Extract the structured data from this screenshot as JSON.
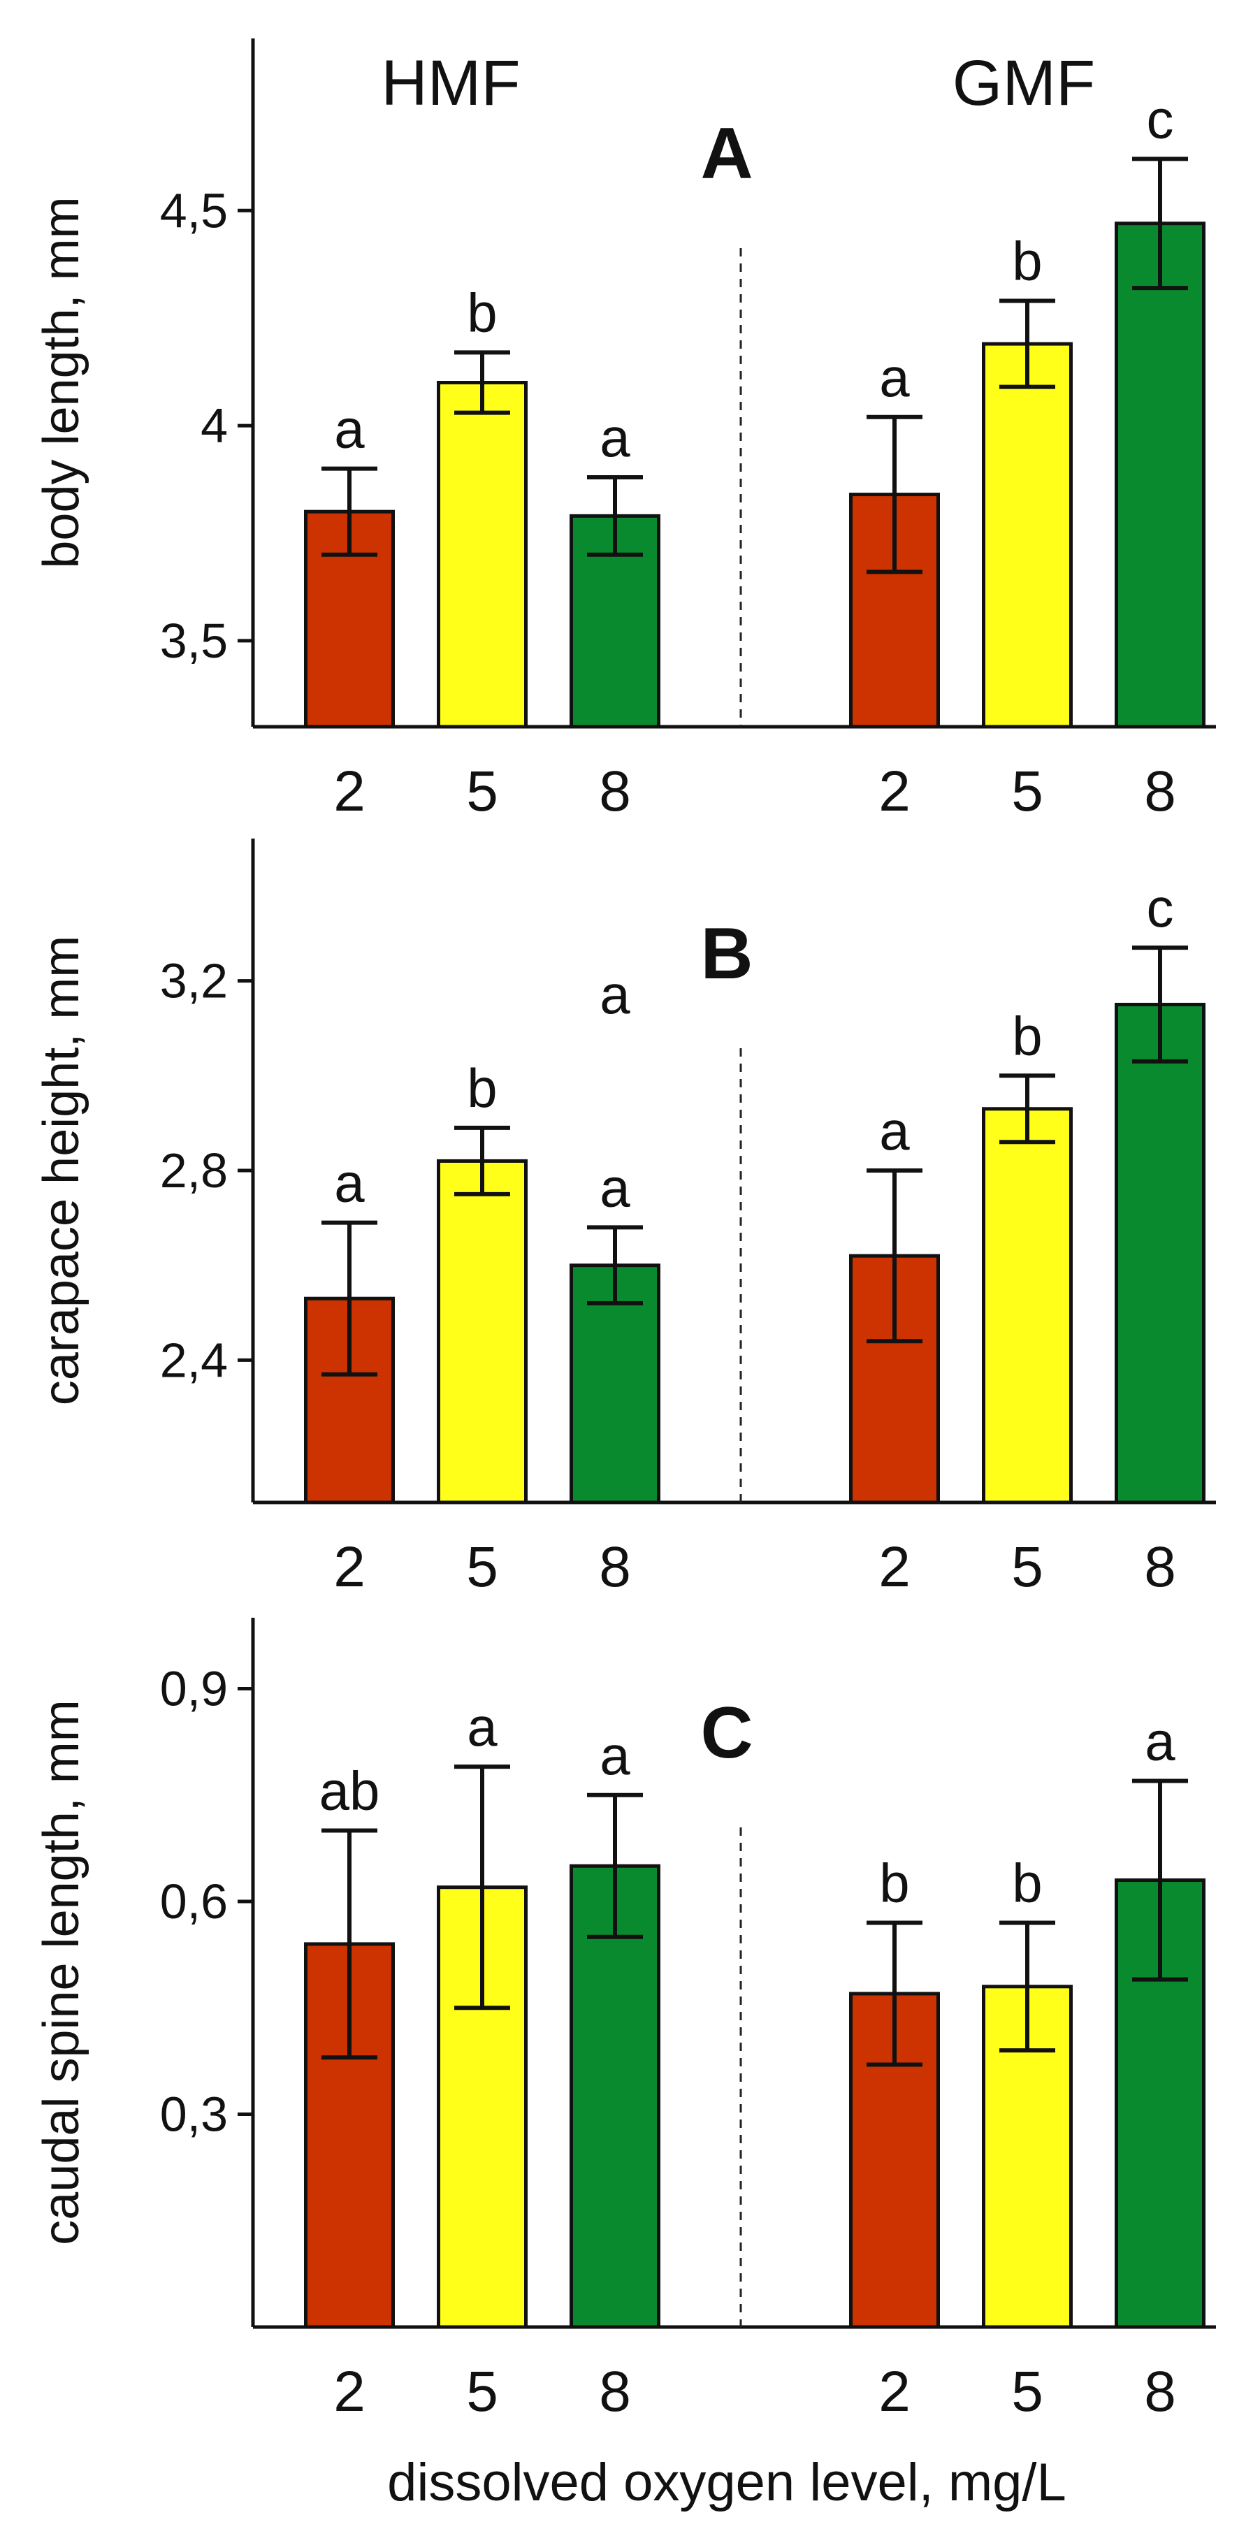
{
  "figure": {
    "group_labels": [
      "HMF",
      "GMF"
    ],
    "x_axis_title": "dissolved oxygen level, mg/L"
  },
  "colors": {
    "o2_2": "#cc3300",
    "o2_5": "#ffff1a",
    "o2_8": "#0a8a2e"
  },
  "chart_data": [
    {
      "type": "bar",
      "panel_label": "A",
      "ylabel": "body length, mm",
      "ylim": [
        3.3,
        4.9
      ],
      "yticks": [
        3.5,
        4,
        4.5
      ],
      "ytick_labels": [
        "3,5",
        "4",
        "4,5"
      ],
      "groups": [
        "HMF",
        "GMF"
      ],
      "categories": [
        "2",
        "5",
        "8"
      ],
      "series": [
        {
          "name": "HMF",
          "values": [
            3.8,
            4.1,
            3.79
          ],
          "errors": [
            0.1,
            0.07,
            0.09
          ],
          "letters": [
            "a",
            "b",
            "a"
          ]
        },
        {
          "name": "GMF",
          "values": [
            3.84,
            4.19,
            4.47
          ],
          "errors": [
            0.18,
            0.1,
            0.15
          ],
          "letters": [
            "a",
            "b",
            "c"
          ]
        }
      ]
    },
    {
      "type": "bar",
      "panel_label": "B",
      "ylabel": "carapace height, mm",
      "ylim": [
        2.1,
        3.5
      ],
      "yticks": [
        2.4,
        2.8,
        3.2
      ],
      "ytick_labels": [
        "2,4",
        "2,8",
        "3,2"
      ],
      "groups": [
        "HMF",
        "GMF"
      ],
      "categories": [
        "2",
        "5",
        "8"
      ],
      "extra_label": "a",
      "series": [
        {
          "name": "HMF",
          "values": [
            2.53,
            2.82,
            2.6
          ],
          "errors": [
            0.16,
            0.07,
            0.08
          ],
          "letters": [
            "a",
            "b",
            "a"
          ]
        },
        {
          "name": "GMF",
          "values": [
            2.62,
            2.93,
            3.15
          ],
          "errors": [
            0.18,
            0.07,
            0.12
          ],
          "letters": [
            "a",
            "b",
            "c"
          ]
        }
      ]
    },
    {
      "type": "bar",
      "panel_label": "C",
      "ylabel": "caudal spine length, mm",
      "ylim": [
        0.0,
        1.0
      ],
      "yticks": [
        0.3,
        0.6,
        0.9
      ],
      "ytick_labels": [
        "0,3",
        "0,6",
        "0,9"
      ],
      "groups": [
        "HMF",
        "GMF"
      ],
      "categories": [
        "2",
        "5",
        "8"
      ],
      "series": [
        {
          "name": "HMF",
          "values": [
            0.54,
            0.62,
            0.65
          ],
          "errors": [
            0.16,
            0.17,
            0.1
          ],
          "letters": [
            "ab",
            "a",
            "a"
          ]
        },
        {
          "name": "GMF",
          "values": [
            0.47,
            0.48,
            0.63
          ],
          "errors": [
            0.1,
            0.09,
            0.14
          ],
          "letters": [
            "b",
            "b",
            "a"
          ]
        }
      ]
    }
  ]
}
